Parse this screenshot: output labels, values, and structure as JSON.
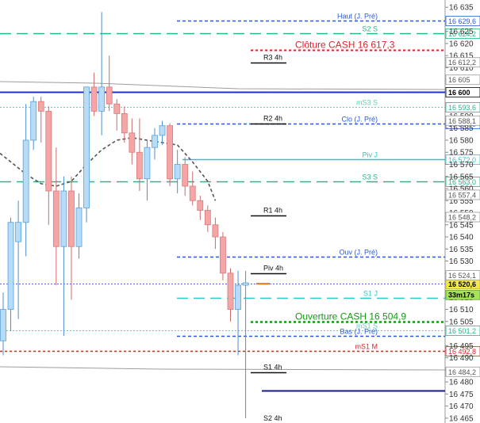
{
  "chart_data": {
    "type": "candlestick",
    "instrument_scale": {
      "ymin": 16463,
      "ymax": 16638
    },
    "price_ticks": [
      "16 635",
      "16 625",
      "16 620",
      "16 615",
      "16 610",
      "16 605",
      "16 590",
      "16 585",
      "16 580",
      "16 575",
      "16 570",
      "16 565",
      "16 560",
      "16 555",
      "16 550",
      "16 545",
      "16 540",
      "16 535",
      "16 530",
      "16 525",
      "16 515",
      "16 510",
      "16 505",
      "16 495",
      "16 490",
      "16 485",
      "16 480",
      "16 475",
      "16 470",
      "16 465"
    ],
    "candles": [
      {
        "o": 16497,
        "h": 16517,
        "l": 16491,
        "c": 16510
      },
      {
        "o": 16510,
        "h": 16548,
        "l": 16501,
        "c": 16546
      },
      {
        "o": 16538,
        "h": 16555,
        "l": 16506,
        "c": 16546
      },
      {
        "o": 16546,
        "h": 16595,
        "l": 16532,
        "c": 16580
      },
      {
        "o": 16580,
        "h": 16598,
        "l": 16576,
        "c": 16596
      },
      {
        "o": 16596,
        "h": 16598,
        "l": 16579,
        "c": 16592
      },
      {
        "o": 16592,
        "h": 16594,
        "l": 16545,
        "c": 16559
      },
      {
        "o": 16559,
        "h": 16577,
        "l": 16520,
        "c": 16536
      },
      {
        "o": 16536,
        "h": 16565,
        "l": 16499,
        "c": 16559
      },
      {
        "o": 16559,
        "h": 16565,
        "l": 16514,
        "c": 16536
      },
      {
        "o": 16536,
        "h": 16558,
        "l": 16531,
        "c": 16552
      },
      {
        "o": 16552,
        "h": 16602,
        "l": 16546,
        "c": 16602
      },
      {
        "o": 16602,
        "h": 16608,
        "l": 16590,
        "c": 16592
      },
      {
        "o": 16592,
        "h": 16633,
        "l": 16582,
        "c": 16602
      },
      {
        "o": 16602,
        "h": 16615,
        "l": 16592,
        "c": 16595
      },
      {
        "o": 16595,
        "h": 16597,
        "l": 16584,
        "c": 16591
      },
      {
        "o": 16591,
        "h": 16594,
        "l": 16579,
        "c": 16583
      },
      {
        "o": 16583,
        "h": 16589,
        "l": 16570,
        "c": 16575
      },
      {
        "o": 16575,
        "h": 16589,
        "l": 16559,
        "c": 16564
      },
      {
        "o": 16564,
        "h": 16580,
        "l": 16555,
        "c": 16577
      },
      {
        "o": 16577,
        "h": 16585,
        "l": 16572,
        "c": 16582
      },
      {
        "o": 16582,
        "h": 16588,
        "l": 16578,
        "c": 16586
      },
      {
        "o": 16586,
        "h": 16587,
        "l": 16561,
        "c": 16564
      },
      {
        "o": 16564,
        "h": 16576,
        "l": 16558,
        "c": 16570
      },
      {
        "o": 16570,
        "h": 16573,
        "l": 16557,
        "c": 16561
      },
      {
        "o": 16561,
        "h": 16567,
        "l": 16553,
        "c": 16555
      },
      {
        "o": 16555,
        "h": 16557,
        "l": 16547,
        "c": 16551
      },
      {
        "o": 16551,
        "h": 16553,
        "l": 16542,
        "c": 16545
      },
      {
        "o": 16545,
        "h": 16548,
        "l": 16535,
        "c": 16540
      },
      {
        "o": 16540,
        "h": 16542,
        "l": 16522,
        "c": 16525
      },
      {
        "o": 16525,
        "h": 16527,
        "l": 16505,
        "c": 16510
      },
      {
        "o": 16510,
        "h": 16526,
        "l": 16491,
        "c": 16520
      },
      {
        "o": 16520,
        "h": 16526,
        "l": 16465,
        "c": 16521
      }
    ],
    "moving_average": [
      {
        "i": -1,
        "v": 16576
      },
      {
        "i": 1,
        "v": 16571
      },
      {
        "i": 3,
        "v": 16566
      },
      {
        "i": 5,
        "v": 16562
      },
      {
        "i": 7,
        "v": 16561
      },
      {
        "i": 9,
        "v": 16563
      },
      {
        "i": 11,
        "v": 16570
      },
      {
        "i": 13,
        "v": 16576
      },
      {
        "i": 15,
        "v": 16580
      },
      {
        "i": 17,
        "v": 16581
      },
      {
        "i": 19,
        "v": 16580
      },
      {
        "i": 21,
        "v": 16579
      },
      {
        "i": 23,
        "v": 16578
      },
      {
        "i": 25,
        "v": 16571
      },
      {
        "i": 27,
        "v": 16563
      },
      {
        "i": 28,
        "v": 16555
      }
    ],
    "levels": [
      {
        "price": 16629.6,
        "color": "#2a5bd7",
        "dash": "4,3",
        "width": 1.5,
        "x0": 223,
        "label": "Haut (J. Pré)",
        "tag": "16 629,6",
        "tagColor": "#2a5bd7",
        "tagFill": "#ffffff"
      },
      {
        "price": 16624.2,
        "color": "#1fba8c",
        "dash": "14,7",
        "width": 1.5,
        "x0": 0,
        "label": "S2 S",
        "tag": "16 624,2",
        "tagColor": "#1fba8c",
        "tagFill": "#ffffff"
      },
      {
        "price": 16617.3,
        "color": "#e0222a",
        "dash": "3,3",
        "width": 2,
        "x0": 316,
        "label": "Clôture CASH 16 617,3",
        "labelSize": "big",
        "tag": null
      },
      {
        "price": 16600,
        "color": "#1e2fd0",
        "dash": "",
        "width": 2,
        "x0": 0,
        "label": "",
        "tag": "16 600",
        "tagColor": "#000000",
        "tagFill": "#ffffff",
        "tagBold": true
      },
      {
        "price": 16593.6,
        "color": "#5fcfb6",
        "dash": "2,2",
        "width": 1,
        "x0": 0,
        "label": "mS3 S",
        "tag": "16 593,6",
        "tagColor": "#1fba8c",
        "tagFill": "#ffffff"
      },
      {
        "price": 16587.0,
        "color": "#2a5bd7",
        "dash": "4,3",
        "width": 1.5,
        "x0": 223,
        "label": "Clo (J. Pré)",
        "tag": "16 587,0",
        "tagColor": "#2a5bd7",
        "tagFill": "#ffffff"
      },
      {
        "price": 16572.0,
        "color": "#2dc6c6",
        "dash": "",
        "width": 1.5,
        "x0": 230,
        "label": "Piv J",
        "tag": "16 572,0",
        "tagColor": "#2dc6c6",
        "tagFill": "#ffffff"
      },
      {
        "price": 16563.0,
        "color": "#1fba8c",
        "dash": "14,7",
        "width": 1.5,
        "x0": 0,
        "label": "S3 S",
        "tag": "16 563,0",
        "tagColor": "#1fba8c",
        "tagFill": "#ffffff"
      },
      {
        "price": 16531.9,
        "color": "#2a5bd7",
        "dash": "4,3",
        "width": 1.5,
        "x0": 223,
        "label": "Ouv (J. Pré)",
        "tag": null
      },
      {
        "price": 16520.6,
        "color": "#5566dd",
        "dash": "2,2",
        "width": 1,
        "x0": 0,
        "label": "",
        "tag": "16 520,6",
        "tagColor": "#000000",
        "tagFill": "#f5e84a",
        "tagBold": true
      },
      {
        "price": 16514.7,
        "color": "#2dc6c6",
        "dash": "14,7",
        "width": 1.5,
        "x0": 223,
        "label": "S1 J",
        "tag": null
      },
      {
        "price": 16504.9,
        "color": "#129a12",
        "dash": "3,3",
        "width": 2.5,
        "x0": 316,
        "label": "Ouverture CASH 16 504,9",
        "labelSize": "big",
        "labelColor": "#129a12",
        "tag": null
      },
      {
        "price": 16501.2,
        "color": "#5fcfb6",
        "dash": "2,2",
        "width": 1,
        "x0": 0,
        "label": "mS1 S",
        "tag": "16 501,2",
        "tagColor": "#1fba8c",
        "tagFill": "#ffffff"
      },
      {
        "price": 16499.0,
        "color": "#2a5bd7",
        "dash": "4,3",
        "width": 1.5,
        "x0": 223,
        "label": "Bas (J. Pré)",
        "tag": null
      },
      {
        "price": 16492.8,
        "color": "#e0222a",
        "dash": "3,3",
        "width": 1.5,
        "x0": 0,
        "label": "mS1 M",
        "tag": "16 492,8",
        "tagColor": "#e0222a",
        "tagFill": "#ffffff"
      },
      {
        "price": 16476.5,
        "color": "#1a1a8a",
        "dash": "",
        "width": 2,
        "x0": 330,
        "label": "",
        "tag": null
      }
    ],
    "pivot_marks": [
      {
        "price": 16612,
        "label": "R3 4h"
      },
      {
        "price": 16587,
        "label": "R2 4h"
      },
      {
        "price": 16549,
        "label": "R1 4h"
      },
      {
        "price": 16525,
        "label": "Piv 4h"
      },
      {
        "price": 16484,
        "label": "S1 4h"
      },
      {
        "price": 16462,
        "label": "S2 4h"
      }
    ],
    "gray_levels": [
      {
        "price": 16605,
        "tag": "16 605"
      },
      {
        "price": 16588.1,
        "tag": "16 588,1"
      },
      {
        "price": 16557.4,
        "tag": "16 557,4"
      },
      {
        "price": 16548.2,
        "tag": "16 548,2"
      },
      {
        "price": 16524.1,
        "tag": "16 524,1"
      },
      {
        "price": 16484.2,
        "tag": "16 484,2"
      },
      {
        "price": 16612.2,
        "tag": "16 612,2"
      }
    ],
    "timer": "33m17s"
  }
}
